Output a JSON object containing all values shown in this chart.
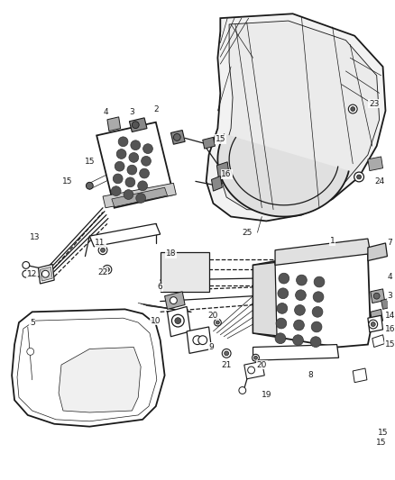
{
  "background": "#ffffff",
  "line_color": "#1a1a1a",
  "figsize": [
    4.38,
    5.33
  ],
  "dpi": 100,
  "label_fs": 6.5,
  "lw_thin": 0.5,
  "lw_med": 0.9,
  "lw_thick": 1.3
}
